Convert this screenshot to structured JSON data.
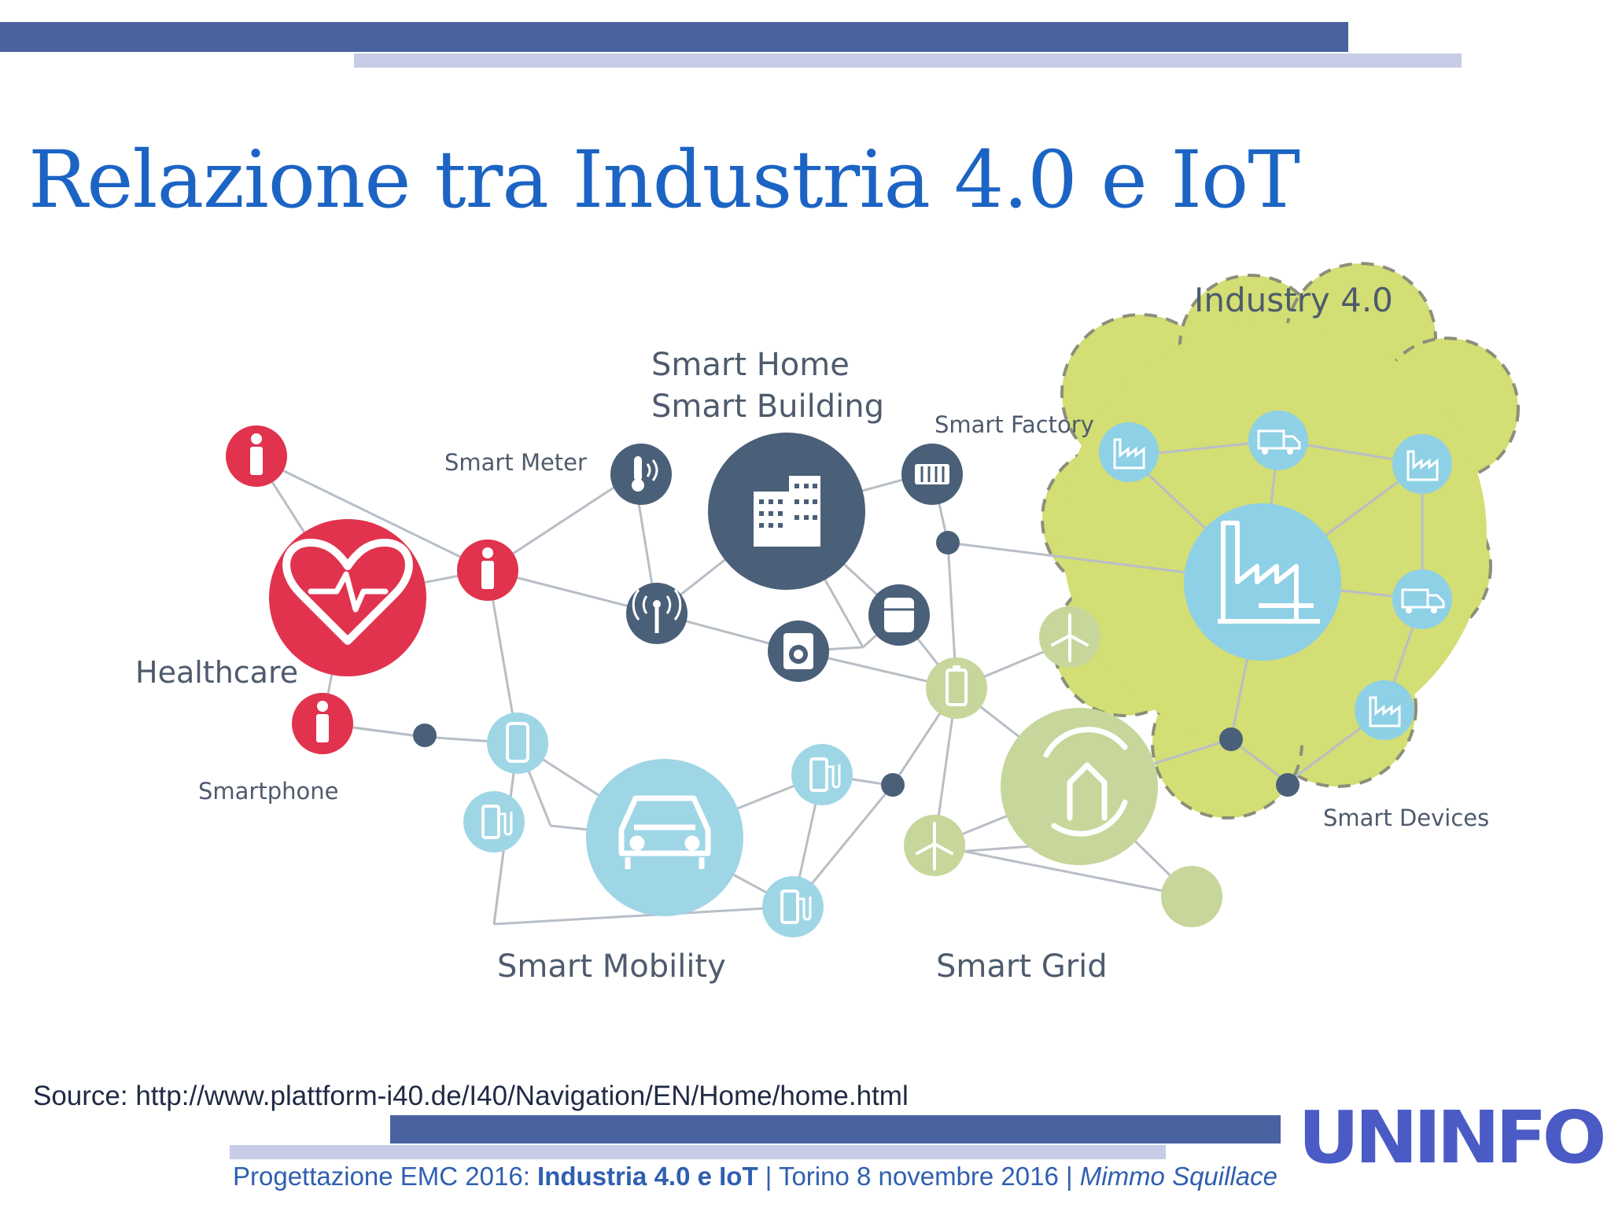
{
  "slide": {
    "title": "Relazione tra Industria 4.0 e IoT",
    "source": "Source: http://www.plattform-i40.de/I40/Navigation/EN/Home/home.html",
    "logo_text": "UNINFO"
  },
  "footer": {
    "part1": "Progettazione EMC 2016: ",
    "part2_bold": "Industria 4.0 e IoT",
    "part3": " | Torino 8 novembre 2016 | ",
    "part4_italic": "Mimmo Squillace"
  },
  "diagram": {
    "labels": {
      "industry": "Industry 4.0",
      "smart_home": "Smart Home",
      "smart_building": "Smart Building",
      "smart_factory": "Smart Factory",
      "smart_meter": "Smart Meter",
      "healthcare": "Healthcare",
      "smartphone": "Smartphone",
      "smart_mobility": "Smart Mobility",
      "smart_grid": "Smart Grid",
      "smart_devices": "Smart Devices"
    },
    "icons": [
      "person-icon",
      "heart-icon",
      "thermometer-icon",
      "building-icon",
      "radiator-icon",
      "antenna-icon",
      "washing-machine-icon",
      "fridge-icon",
      "phone-icon",
      "fuel-pump-icon",
      "car-icon",
      "wind-turbine-icon",
      "battery-icon",
      "house-plug-icon",
      "factory-icon",
      "truck-icon"
    ]
  },
  "colors": {
    "title_blue": "#1c64c4",
    "bar_dark": "#4a62a0",
    "bar_light": "#c7cde6",
    "health_red": "#e1334e",
    "home_slate": "#4a5f78",
    "mobility_blue": "#9fd6e6",
    "grid_green": "#c7d69b",
    "cloud_yellow": "#d3de74",
    "factory_blue": "#8ed0e6",
    "logo_blue": "#4a5bc6"
  }
}
